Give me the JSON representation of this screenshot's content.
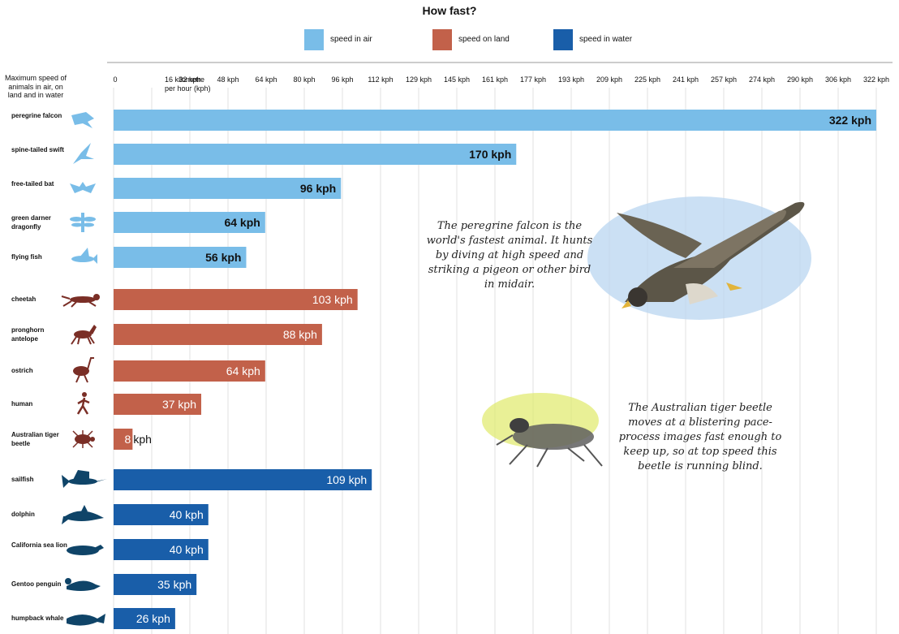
{
  "chart_data": {
    "type": "bar",
    "orientation": "horizontal",
    "title": "How fast?",
    "corner_label": "Maximum speed of animals in air, on land and in water",
    "x_ticks": [
      "0",
      "16 kilometre per hour (kph)",
      "32 kph",
      "48 kph",
      "64 kph",
      "80 kph",
      "96 kph",
      "112 kph",
      "129 kph",
      "145 kph",
      "161 kph",
      "177 kph",
      "193 kph",
      "209 kph",
      "225 kph",
      "241 kph",
      "257 kph",
      "274 kph",
      "290 kph",
      "306 kph",
      "322 kph"
    ],
    "xlim": [
      0,
      322
    ],
    "grid": true,
    "legend_position": "top",
    "series": [
      {
        "name": "speed in air",
        "color": "#79bde8"
      },
      {
        "name": "speed on land",
        "color": "#c2614a"
      },
      {
        "name": "speed in water",
        "color": "#195ea9"
      }
    ],
    "bars": [
      {
        "category": "peregrine falcon",
        "group": "speed in air",
        "value": 322,
        "label": "322 kph",
        "icon": "falcon-icon"
      },
      {
        "category": "spine-tailed swift",
        "group": "speed in air",
        "value": 170,
        "label": "170 kph",
        "icon": "swift-icon"
      },
      {
        "category": "free-tailed bat",
        "group": "speed in air",
        "value": 96,
        "label": "96 kph",
        "icon": "bat-icon"
      },
      {
        "category": "green darner dragonfly",
        "group": "speed in air",
        "value": 64,
        "label": "64 kph",
        "icon": "dragonfly-icon"
      },
      {
        "category": "flying fish",
        "group": "speed in air",
        "value": 56,
        "label": "56 kph",
        "icon": "flying-fish-icon"
      },
      {
        "category": "cheetah",
        "group": "speed on land",
        "value": 103,
        "label": "103 kph",
        "icon": "cheetah-icon"
      },
      {
        "category": "pronghorn antelope",
        "group": "speed on land",
        "value": 88,
        "label": "88 kph",
        "icon": "antelope-icon"
      },
      {
        "category": "ostrich",
        "group": "speed on land",
        "value": 64,
        "label": "64 kph",
        "icon": "ostrich-icon"
      },
      {
        "category": "human",
        "group": "speed on land",
        "value": 37,
        "label": "37 kph",
        "icon": "human-icon"
      },
      {
        "category": "Australian tiger beetle",
        "group": "speed on land",
        "value": 8,
        "label": "8 kph",
        "icon": "beetle-icon"
      },
      {
        "category": "sailfish",
        "group": "speed in water",
        "value": 109,
        "label": "109 kph",
        "icon": "sailfish-icon"
      },
      {
        "category": "dolphin",
        "group": "speed in water",
        "value": 40,
        "label": "40 kph",
        "icon": "dolphin-icon"
      },
      {
        "category": "California sea lion",
        "group": "speed in water",
        "value": 40,
        "label": "40 kph",
        "icon": "sea-lion-icon"
      },
      {
        "category": "Gentoo penguin",
        "group": "speed in water",
        "value": 35,
        "label": "35 kph",
        "icon": "penguin-icon"
      },
      {
        "category": "humpback whale",
        "group": "speed in water",
        "value": 26,
        "label": "26 kph",
        "icon": "whale-icon"
      }
    ],
    "annotations": [
      {
        "text": "The peregrine falcon is the world's fastest animal. It hunts by diving at high speed and striking a pigeon or other bird in midair.",
        "illustration": "falcon-illustration"
      },
      {
        "text": "The Australian tiger beetle moves at a blistering pace- process images fast enough to keep up, so at top speed this beetle is running blind.",
        "illustration": "beetle-illustration"
      }
    ]
  }
}
